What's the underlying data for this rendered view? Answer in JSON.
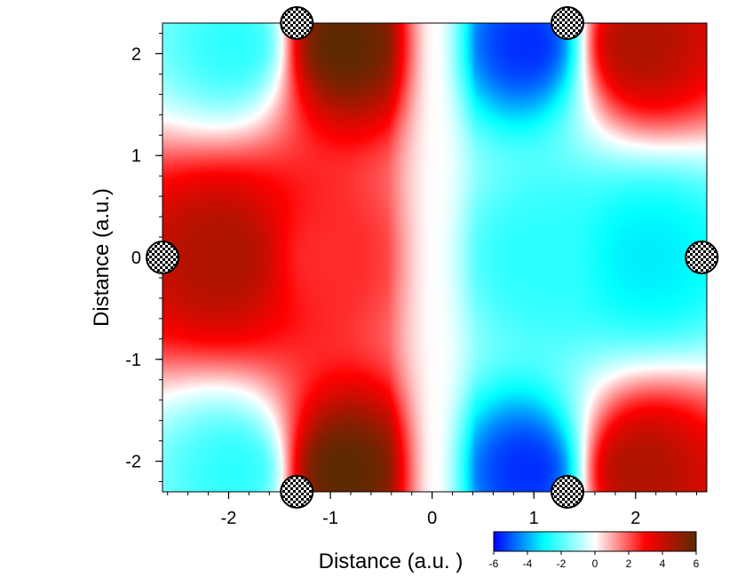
{
  "chart_data": {
    "type": "heatmap",
    "title": "",
    "xlabel": "Distance (a.u.  )",
    "ylabel": "Distance (a.u.)",
    "xlim": [
      -2.65,
      2.7
    ],
    "ylim": [
      -2.3,
      2.3
    ],
    "x_ticks": [
      -2,
      -1,
      0,
      1,
      2
    ],
    "y_ticks": [
      2,
      1,
      0,
      -1,
      -2
    ],
    "x_tick_labels": [
      "-2",
      "-1",
      "0",
      "1",
      "2"
    ],
    "y_tick_labels": [
      "2",
      "1",
      "0",
      "-1",
      "-2"
    ],
    "colorbar": {
      "range": [
        -6,
        6
      ],
      "ticks": [
        -6,
        -4,
        -2,
        0,
        2,
        4,
        6
      ],
      "tick_labels": [
        "-6",
        "-4",
        "-2",
        "0",
        "2",
        "4",
        "6"
      ],
      "colors": [
        "#0000ff",
        "#00ffff",
        "#ffffff",
        "#ff0000",
        "#5a2a00"
      ]
    },
    "features": [
      {
        "x": -2.0,
        "y": 0.0,
        "value": 4.5
      },
      {
        "x": -0.9,
        "y": 2.1,
        "value": 6.0
      },
      {
        "x": -0.9,
        "y": -2.1,
        "value": 6.0
      },
      {
        "x": -1.05,
        "y": 0.0,
        "value": 2.5
      },
      {
        "x": 0.95,
        "y": 2.1,
        "value": -5.5
      },
      {
        "x": 0.95,
        "y": -2.1,
        "value": -5.5
      },
      {
        "x": 2.1,
        "y": 0.0,
        "value": -3.2
      },
      {
        "x": 1.05,
        "y": 0.0,
        "value": -2.5
      },
      {
        "x": -1.9,
        "y": 2.1,
        "value": -2.5
      },
      {
        "x": -1.9,
        "y": -2.1,
        "value": -2.5
      },
      {
        "x": 2.0,
        "y": 2.1,
        "value": 4.5
      },
      {
        "x": 2.0,
        "y": -2.1,
        "value": 4.5
      }
    ],
    "atoms": [
      {
        "x": -2.65,
        "y": 0.0
      },
      {
        "x": 2.65,
        "y": 0.0
      },
      {
        "x": -1.33,
        "y": 2.3
      },
      {
        "x": 1.33,
        "y": 2.3
      },
      {
        "x": -1.33,
        "y": -2.3
      },
      {
        "x": 1.33,
        "y": -2.3
      }
    ]
  }
}
